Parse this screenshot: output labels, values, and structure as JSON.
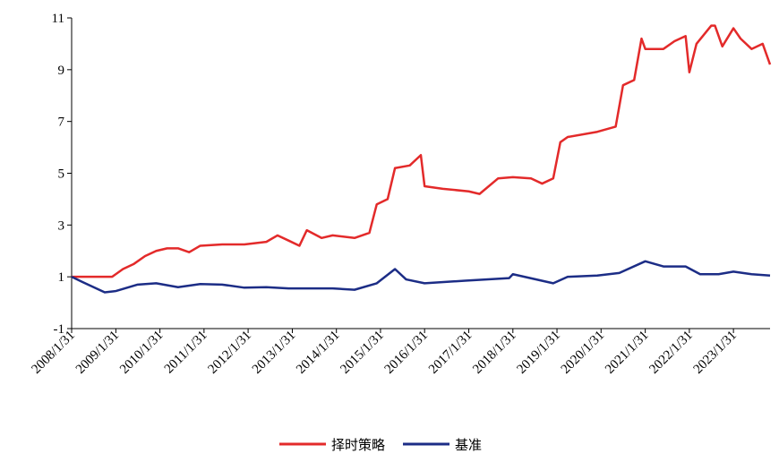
{
  "chart_data": {
    "type": "line",
    "xlim": [
      "2008/1/31",
      "2023/11/30"
    ],
    "xticks": [
      "2008/1/31",
      "2009/1/31",
      "2010/1/31",
      "2011/1/31",
      "2012/1/31",
      "2013/1/31",
      "2014/1/31",
      "2015/1/31",
      "2016/1/31",
      "2017/1/31",
      "2018/1/31",
      "2019/1/31",
      "2020/1/31",
      "2021/1/31",
      "2022/1/31",
      "2023/1/31"
    ],
    "ylim": [
      -1,
      11
    ],
    "yticks": [
      -1,
      1,
      3,
      5,
      7,
      9,
      11
    ],
    "legend": "bottom",
    "series": [
      {
        "name": "择时策略",
        "color": "#e32a2a",
        "x": [
          "2008/1/31",
          "2008/12/31",
          "2009/3/31",
          "2009/6/30",
          "2009/9/30",
          "2009/12/31",
          "2010/3/31",
          "2010/6/30",
          "2010/9/30",
          "2010/12/31",
          "2011/6/30",
          "2011/12/31",
          "2012/6/30",
          "2012/9/30",
          "2012/12/31",
          "2013/3/31",
          "2013/5/31",
          "2013/9/30",
          "2013/12/31",
          "2014/6/30",
          "2014/10/31",
          "2014/12/31",
          "2015/3/31",
          "2015/5/31",
          "2015/9/30",
          "2015/12/31",
          "2016/1/31",
          "2016/6/30",
          "2017/1/31",
          "2017/4/30",
          "2017/9/30",
          "2018/1/31",
          "2018/6/30",
          "2018/9/30",
          "2018/12/31",
          "2019/2/28",
          "2019/4/30",
          "2019/12/31",
          "2020/5/31",
          "2020/7/31",
          "2020/10/31",
          "2020/12/31",
          "2021/1/31",
          "2021/6/30",
          "2021/9/30",
          "2021/12/31",
          "2022/1/31",
          "2022/3/31",
          "2022/7/31",
          "2022/8/31",
          "2022/10/31",
          "2023/1/31",
          "2023/3/31",
          "2023/6/30",
          "2023/9/30",
          "2023/11/30"
        ],
        "values": [
          1.0,
          1.0,
          1.3,
          1.5,
          1.8,
          2.0,
          2.1,
          2.1,
          1.95,
          2.2,
          2.25,
          2.25,
          2.35,
          2.6,
          2.4,
          2.2,
          2.8,
          2.5,
          2.6,
          2.5,
          2.7,
          3.8,
          4.0,
          5.2,
          5.3,
          5.7,
          4.5,
          4.4,
          4.3,
          4.2,
          4.8,
          4.85,
          4.8,
          4.6,
          4.8,
          6.2,
          6.4,
          6.6,
          6.8,
          8.4,
          8.6,
          10.2,
          9.8,
          9.8,
          10.1,
          10.3,
          8.9,
          10.0,
          10.7,
          10.7,
          9.9,
          10.6,
          10.2,
          9.8,
          10.0,
          9.2
        ]
      },
      {
        "name": "基准",
        "color": "#1c2d86",
        "x": [
          "2008/1/31",
          "2008/4/30",
          "2008/10/31",
          "2009/1/31",
          "2009/7/31",
          "2009/12/31",
          "2010/6/30",
          "2010/12/31",
          "2011/6/30",
          "2011/12/31",
          "2012/6/30",
          "2012/12/31",
          "2013/6/30",
          "2013/12/31",
          "2014/6/30",
          "2014/12/31",
          "2015/5/31",
          "2015/8/31",
          "2016/1/31",
          "2016/12/31",
          "2017/12/31",
          "2018/1/31",
          "2018/12/31",
          "2019/4/30",
          "2019/12/31",
          "2020/6/30",
          "2021/1/31",
          "2021/6/30",
          "2021/12/31",
          "2022/4/30",
          "2022/9/30",
          "2023/1/31",
          "2023/6/30",
          "2023/11/30"
        ],
        "values": [
          1.0,
          0.8,
          0.4,
          0.45,
          0.7,
          0.75,
          0.6,
          0.72,
          0.7,
          0.58,
          0.6,
          0.55,
          0.55,
          0.55,
          0.5,
          0.75,
          1.3,
          0.9,
          0.75,
          0.85,
          0.95,
          1.1,
          0.75,
          1.0,
          1.05,
          1.15,
          1.6,
          1.4,
          1.4,
          1.1,
          1.1,
          1.2,
          1.1,
          1.05
        ]
      }
    ]
  }
}
